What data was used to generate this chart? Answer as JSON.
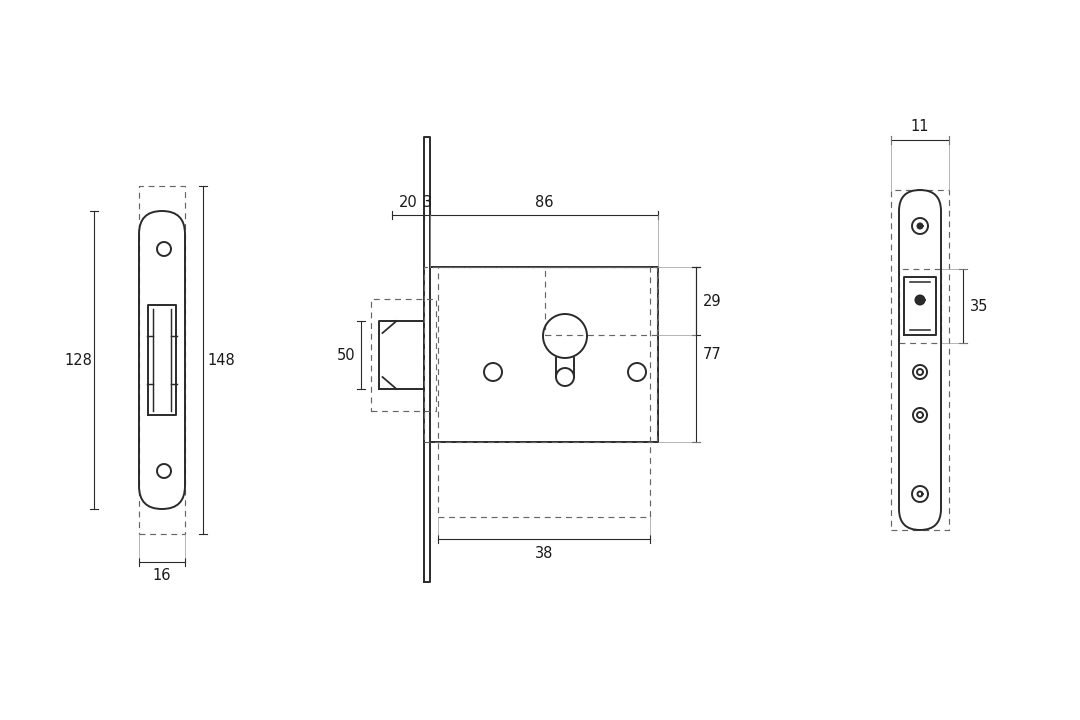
{
  "bg_color": "#ffffff",
  "line_color": "#2a2a2a",
  "dash_color": "#666666",
  "text_color": "#1a1a1a",
  "font_size": 10.5,
  "lw_solid": 1.4,
  "lw_dash": 0.85,
  "lw_dim": 0.8
}
